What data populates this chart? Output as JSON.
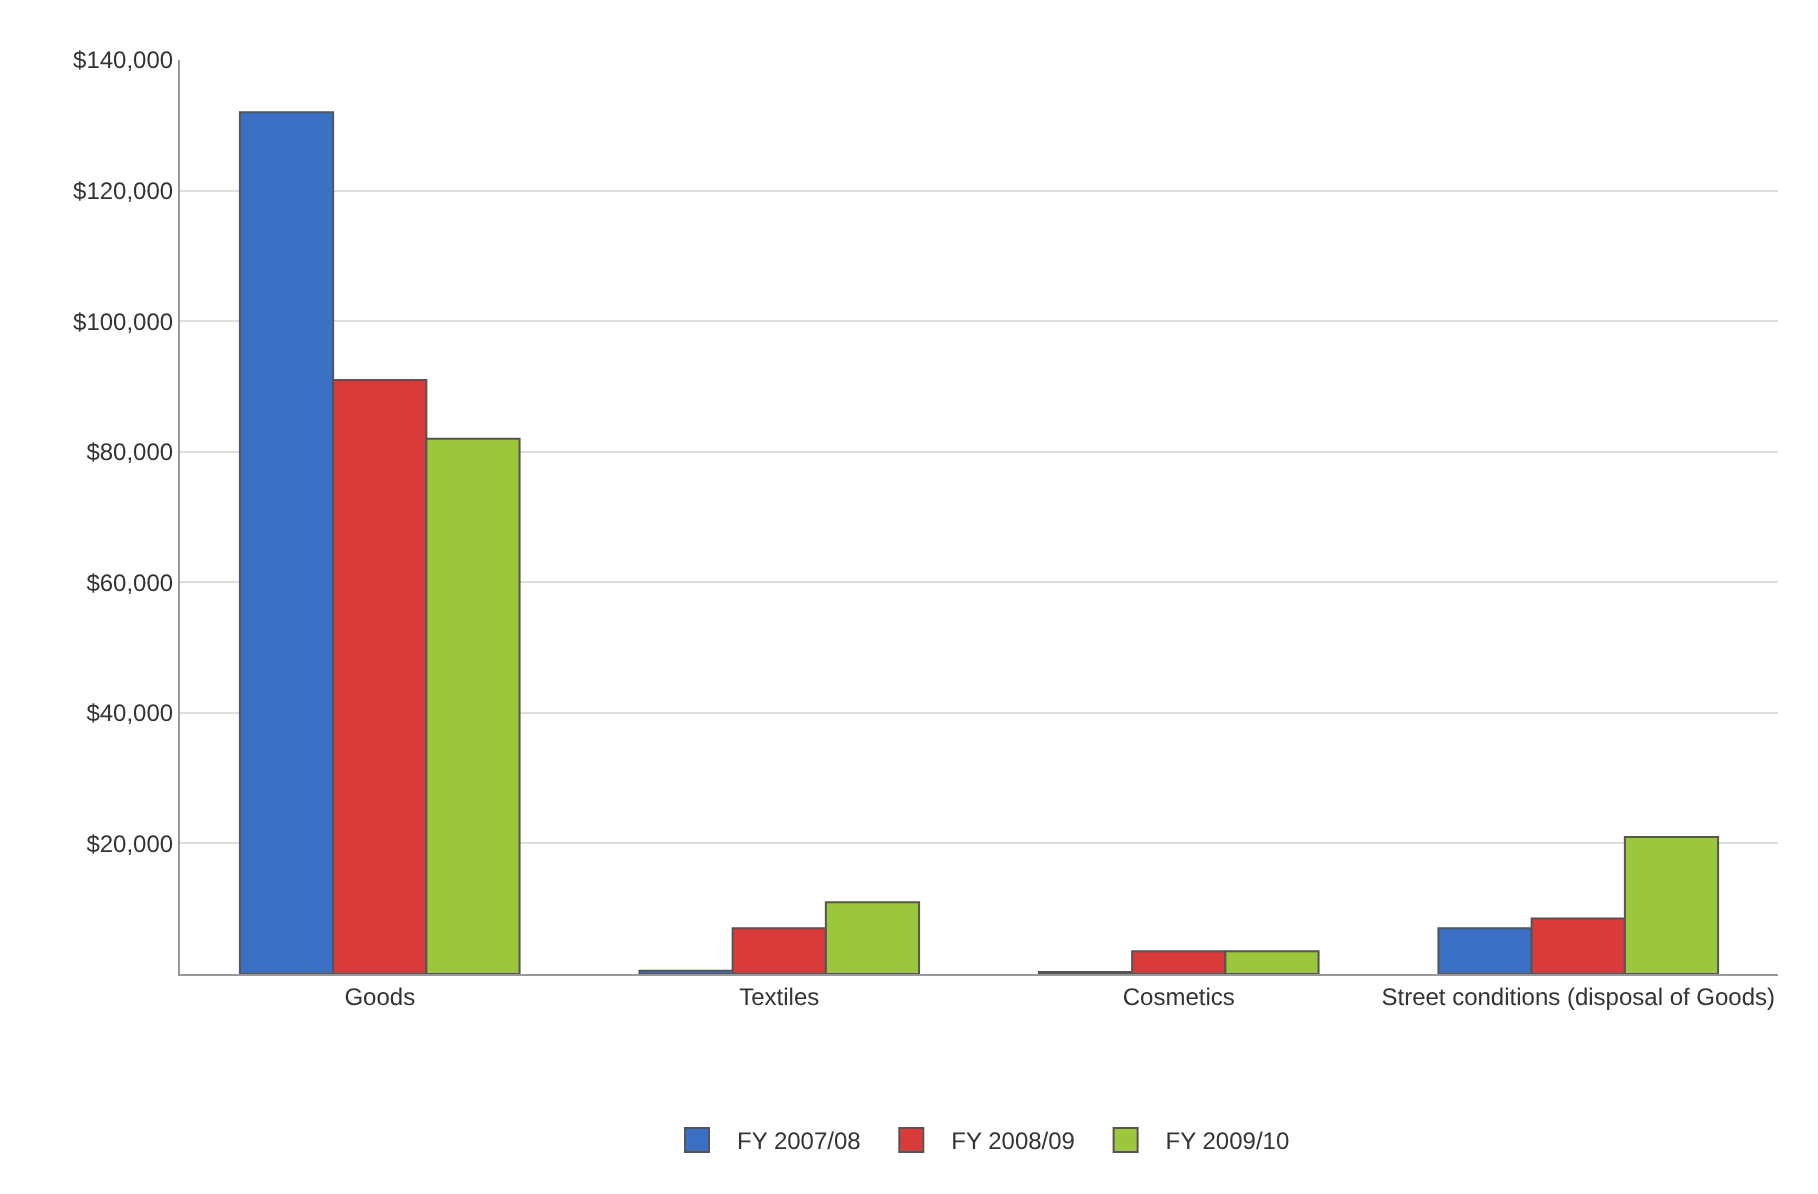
{
  "chart_data": {
    "type": "bar",
    "categories": [
      "Goods",
      "Textiles",
      "Cosmetics",
      "Street conditions (disposal of Goods)"
    ],
    "series": [
      {
        "name": "FY 2007/08",
        "color": "#3a6fc4",
        "values": [
          132000,
          500,
          300,
          7000
        ]
      },
      {
        "name": "FY 2008/09",
        "color": "#d93a3a",
        "values": [
          91000,
          7000,
          3500,
          8500
        ]
      },
      {
        "name": "FY 2009/10",
        "color": "#9cc63c",
        "values": [
          82000,
          11000,
          3500,
          21000
        ]
      }
    ],
    "ylim": [
      0,
      140000
    ],
    "yticks": [
      {
        "value": 0,
        "label": null
      },
      {
        "value": 20000,
        "label": "$20,000"
      },
      {
        "value": 40000,
        "label": "$40,000"
      },
      {
        "value": 60000,
        "label": "$60,000"
      },
      {
        "value": 80000,
        "label": "$80,000"
      },
      {
        "value": 100000,
        "label": "$100,000"
      },
      {
        "value": 120000,
        "label": "$120,000"
      },
      {
        "value": 140000,
        "label": "$140,000"
      }
    ],
    "grid": "y",
    "legend": "bottom"
  }
}
